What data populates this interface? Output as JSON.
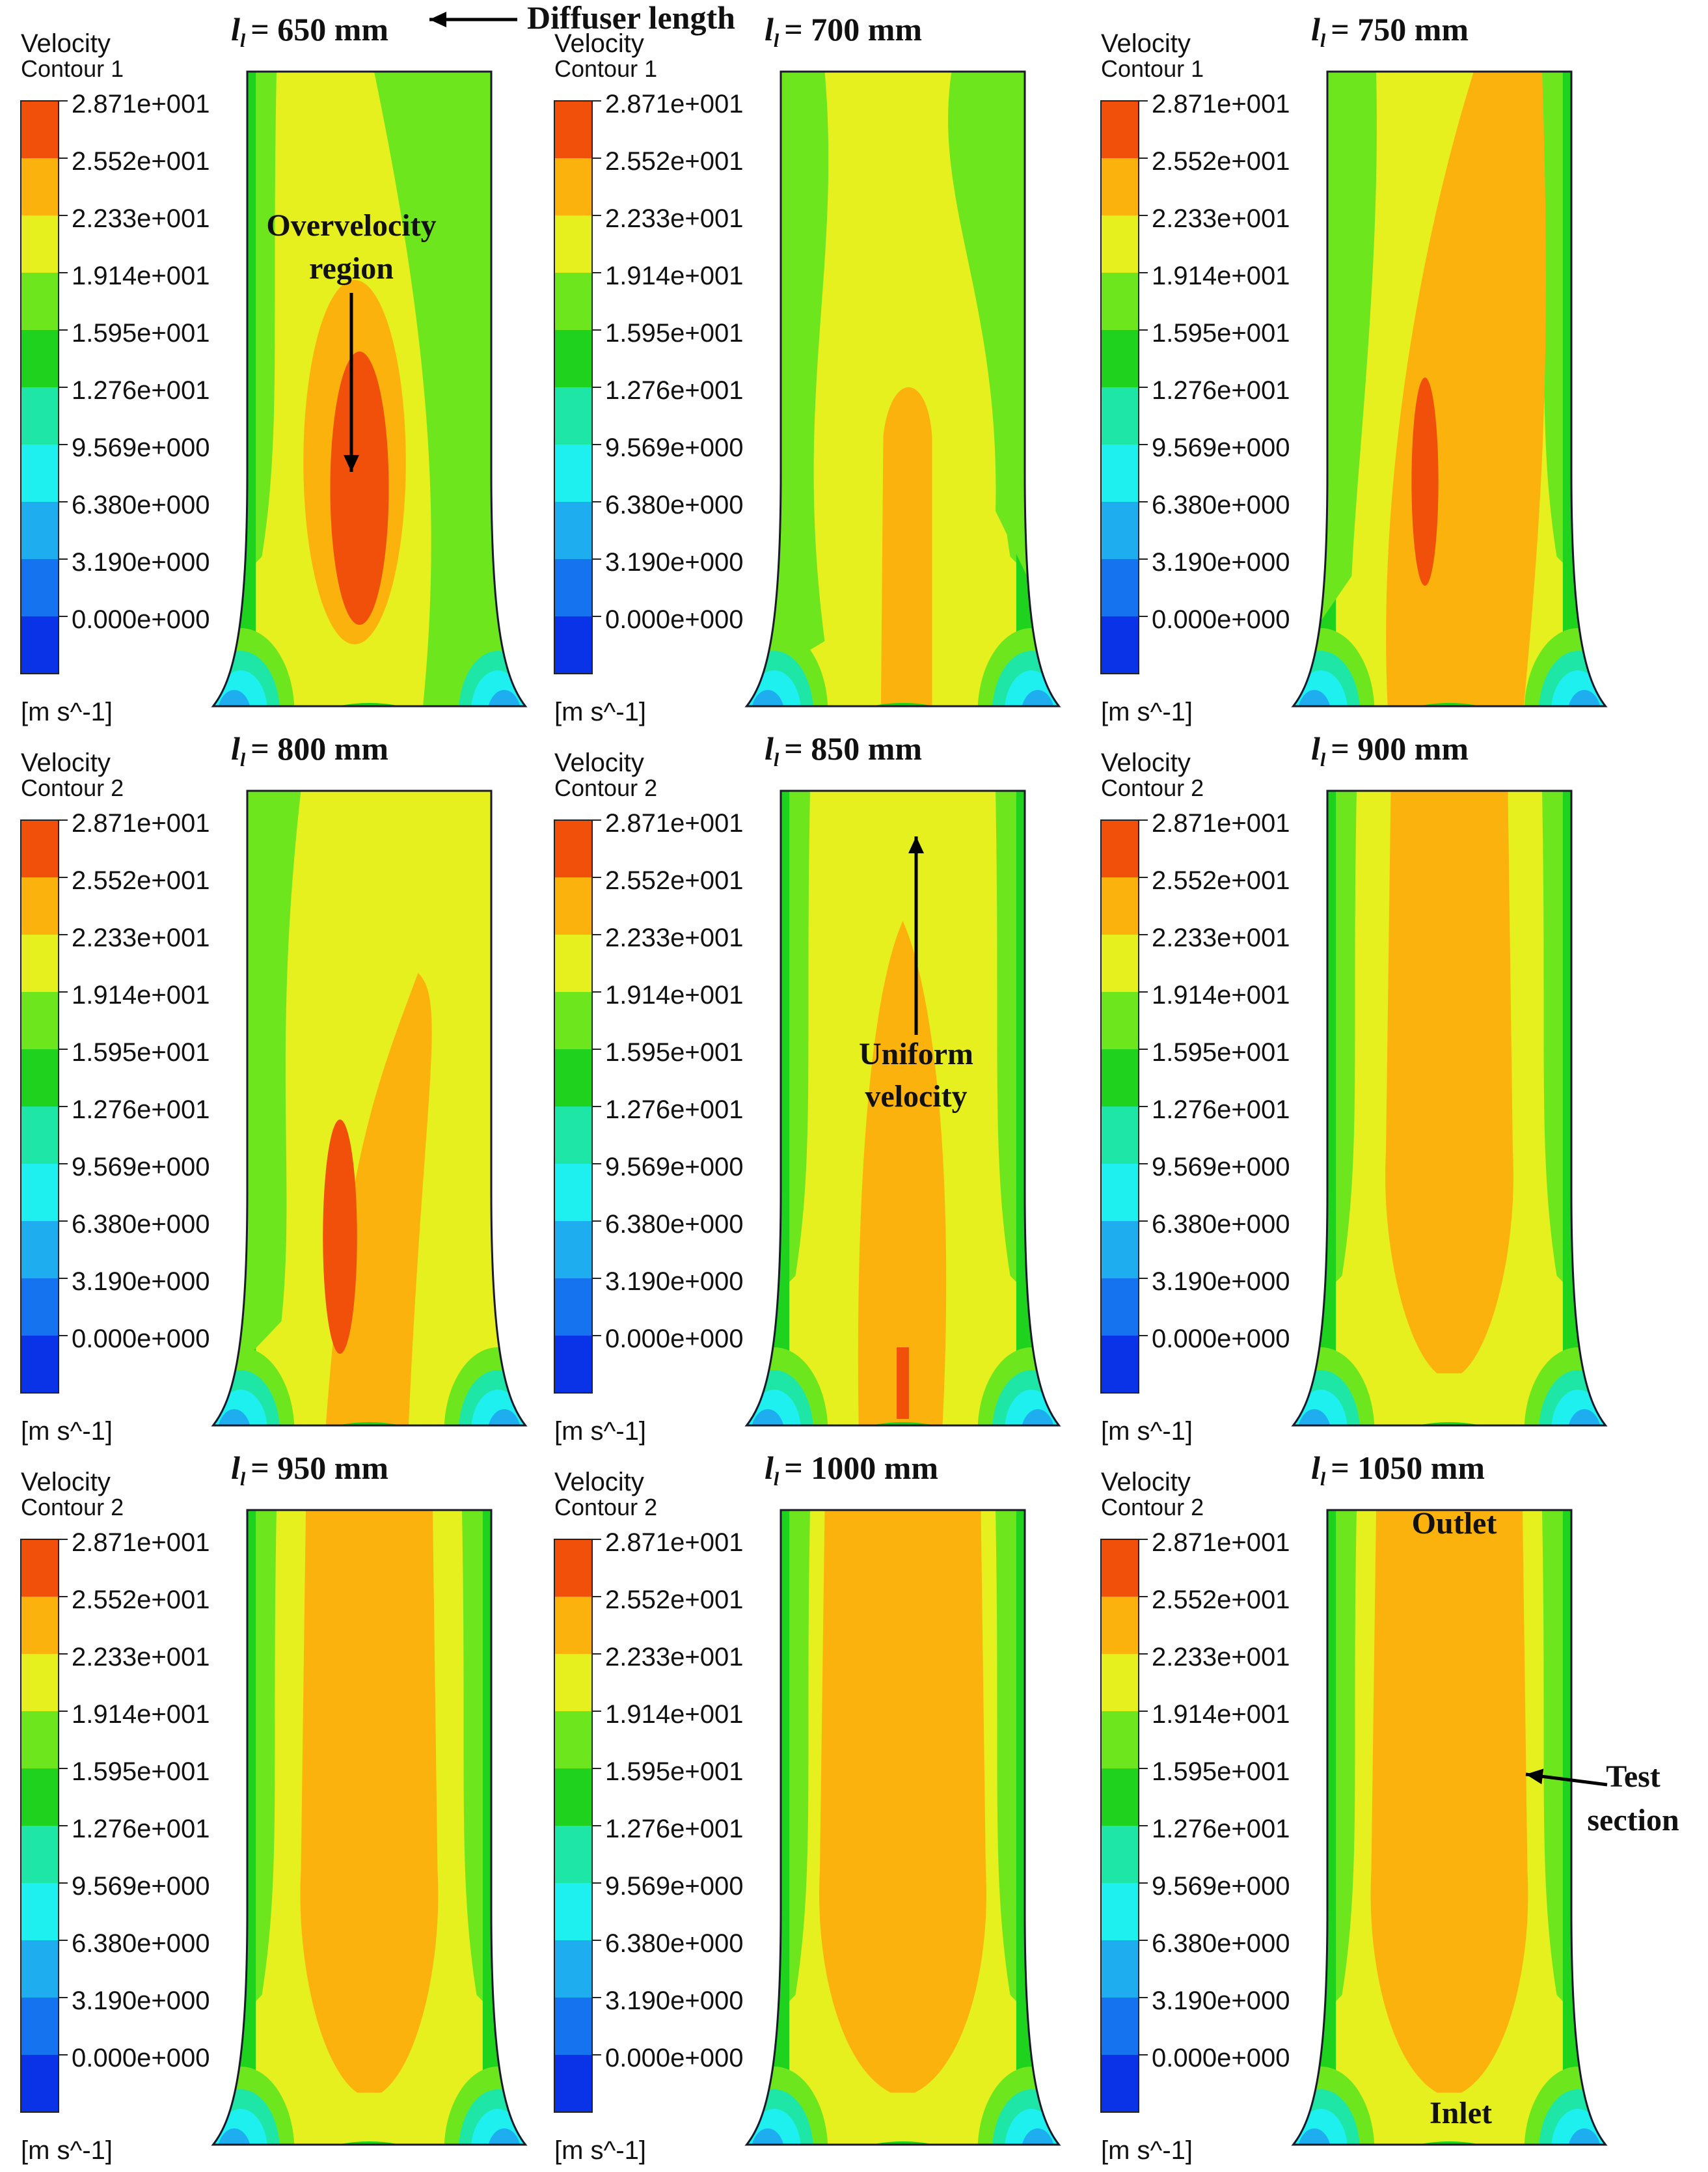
{
  "colormap": [
    "#0a32e6",
    "#1573f0",
    "#1eaef0",
    "#1ef0f0",
    "#1ee6a6",
    "#1ed21e",
    "#6ee61e",
    "#e6f01e",
    "#fbb20c",
    "#f0500a"
  ],
  "scale_labels": [
    "2.871e+001",
    "2.552e+001",
    "2.233e+001",
    "1.914e+001",
    "1.595e+001",
    "1.276e+001",
    "9.569e+000",
    "6.380e+000",
    "3.190e+000",
    "0.000e+000"
  ],
  "unit": "[m s^-1]",
  "legend_title": "Velocity",
  "length_symbol": "l",
  "length_subscript": "l",
  "panels": [
    {
      "length_text": "= 650 mm",
      "contour": "Contour 1"
    },
    {
      "length_text": "= 700 mm",
      "contour": "Contour 1"
    },
    {
      "length_text": "= 750 mm",
      "contour": "Contour 1"
    },
    {
      "length_text": "= 800 mm",
      "contour": "Contour 2"
    },
    {
      "length_text": "= 850 mm",
      "contour": "Contour 2"
    },
    {
      "length_text": "= 900 mm",
      "contour": "Contour 2"
    },
    {
      "length_text": "= 950 mm",
      "contour": "Contour 2"
    },
    {
      "length_text": "= 1000 mm",
      "contour": "Contour 2"
    },
    {
      "length_text": "= 1050 mm",
      "contour": "Contour 2"
    }
  ],
  "annotations": {
    "diffuser_length": "Diffuser length",
    "overvelocity_line1": "Overvelocity",
    "overvelocity_line2": "region",
    "uniform_line1": "Uniform",
    "uniform_line2": "velocity",
    "test_line1": "Test",
    "test_line2": "section",
    "outlet": "Outlet",
    "inlet": "Inlet"
  }
}
